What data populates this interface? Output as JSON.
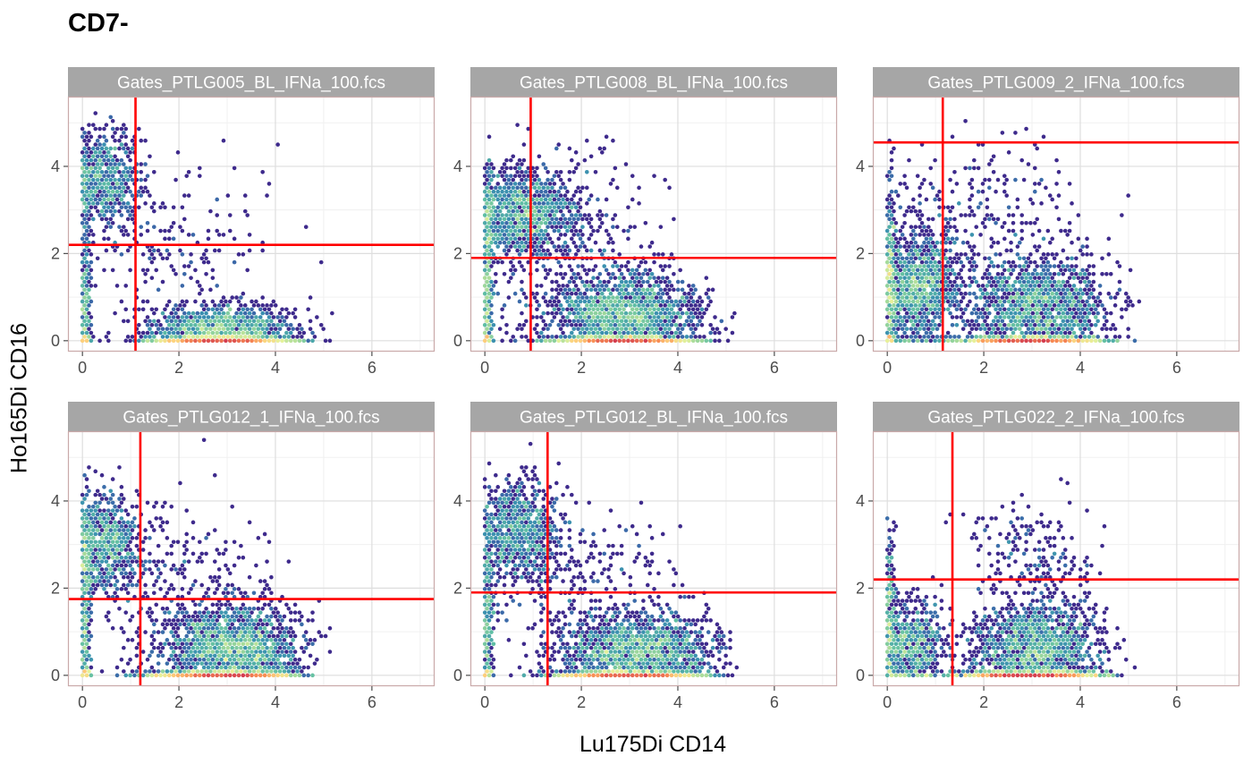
{
  "chart_data": {
    "type": "scatter",
    "subtype": "hexbin density facets",
    "title": "CD7-",
    "xlabel": "Lu175Di CD14",
    "ylabel": "Ho165Di CD16",
    "xlim": [
      -0.3,
      7.3
    ],
    "ylim": [
      -0.25,
      5.6
    ],
    "x_ticks": [
      0,
      2,
      4,
      6
    ],
    "y_ticks": [
      0,
      2,
      4
    ],
    "grid": true,
    "layout": "2 rows x 3 columns",
    "density_palette": [
      "#3e2a8c",
      "#3b5ba6",
      "#3a8fb0",
      "#5fbea4",
      "#a6db9b",
      "#e6f29b",
      "#fdd37e",
      "#f88b52",
      "#d43d4f"
    ],
    "gate_color": "#ff0000",
    "panels": [
      {
        "name": "Gates_PTLG005_BL_IFNa_100.fcs",
        "gate_x": 1.1,
        "gate_y": 2.2,
        "clusters": [
          {
            "cx": 0.45,
            "cy": 3.7,
            "sx": 0.4,
            "sy": 0.55,
            "n": 700
          },
          {
            "cx": 2.9,
            "cy": 0.2,
            "sx": 0.75,
            "sy": 0.3,
            "n": 1500
          },
          {
            "cx": 0.05,
            "cy": 0.6,
            "sx": 0.06,
            "sy": 0.9,
            "n": 300
          },
          {
            "cx": 2.0,
            "cy": 2.2,
            "sx": 1.0,
            "sy": 1.0,
            "n": 200
          }
        ]
      },
      {
        "name": "Gates_PTLG008_BL_IFNa_100.fcs",
        "gate_x": 0.95,
        "gate_y": 1.9,
        "clusters": [
          {
            "cx": 0.8,
            "cy": 2.9,
            "sx": 0.55,
            "sy": 0.5,
            "n": 1100
          },
          {
            "cx": 2.9,
            "cy": 0.55,
            "sx": 0.8,
            "sy": 0.5,
            "n": 1800
          },
          {
            "cx": 0.05,
            "cy": 1.0,
            "sx": 0.06,
            "sy": 1.2,
            "n": 400
          },
          {
            "cx": 1.8,
            "cy": 2.0,
            "sx": 1.0,
            "sy": 1.1,
            "n": 400
          }
        ]
      },
      {
        "name": "Gates_PTLG009_2_IFNa_100.fcs",
        "gate_x": 1.15,
        "gate_y": 4.55,
        "clusters": [
          {
            "cx": 0.6,
            "cy": 1.2,
            "sx": 0.45,
            "sy": 0.65,
            "n": 1200
          },
          {
            "cx": 3.1,
            "cy": 0.75,
            "sx": 0.75,
            "sy": 0.6,
            "n": 1600
          },
          {
            "cx": 1.8,
            "cy": 2.8,
            "sx": 1.1,
            "sy": 0.9,
            "n": 300
          },
          {
            "cx": 0.05,
            "cy": 1.2,
            "sx": 0.06,
            "sy": 1.2,
            "n": 300
          }
        ]
      },
      {
        "name": "Gates_PTLG012_1_IFNa_100.fcs",
        "gate_x": 1.2,
        "gate_y": 1.75,
        "clusters": [
          {
            "cx": 0.45,
            "cy": 3.0,
            "sx": 0.4,
            "sy": 0.6,
            "n": 800
          },
          {
            "cx": 3.1,
            "cy": 0.6,
            "sx": 0.75,
            "sy": 0.5,
            "n": 1700
          },
          {
            "cx": 0.05,
            "cy": 1.0,
            "sx": 0.06,
            "sy": 1.1,
            "n": 300
          },
          {
            "cx": 2.0,
            "cy": 2.0,
            "sx": 1.0,
            "sy": 1.0,
            "n": 300
          }
        ]
      },
      {
        "name": "Gates_PTLG012_BL_IFNa_100.fcs",
        "gate_x": 1.3,
        "gate_y": 1.9,
        "clusters": [
          {
            "cx": 0.7,
            "cy": 3.3,
            "sx": 0.45,
            "sy": 0.6,
            "n": 800
          },
          {
            "cx": 3.2,
            "cy": 0.5,
            "sx": 0.8,
            "sy": 0.45,
            "n": 1800
          },
          {
            "cx": 0.05,
            "cy": 1.0,
            "sx": 0.06,
            "sy": 1.1,
            "n": 300
          },
          {
            "cx": 2.1,
            "cy": 2.0,
            "sx": 1.1,
            "sy": 1.0,
            "n": 300
          }
        ]
      },
      {
        "name": "Gates_PTLG022_2_IFNa_100.fcs",
        "gate_x": 1.35,
        "gate_y": 2.2,
        "clusters": [
          {
            "cx": 0.5,
            "cy": 0.7,
            "sx": 0.35,
            "sy": 0.5,
            "n": 700
          },
          {
            "cx": 3.1,
            "cy": 0.6,
            "sx": 0.7,
            "sy": 0.55,
            "n": 1500
          },
          {
            "cx": 3.0,
            "cy": 2.8,
            "sx": 0.6,
            "sy": 0.6,
            "n": 200
          },
          {
            "cx": 0.05,
            "cy": 1.5,
            "sx": 0.06,
            "sy": 1.0,
            "n": 200
          }
        ]
      }
    ]
  }
}
